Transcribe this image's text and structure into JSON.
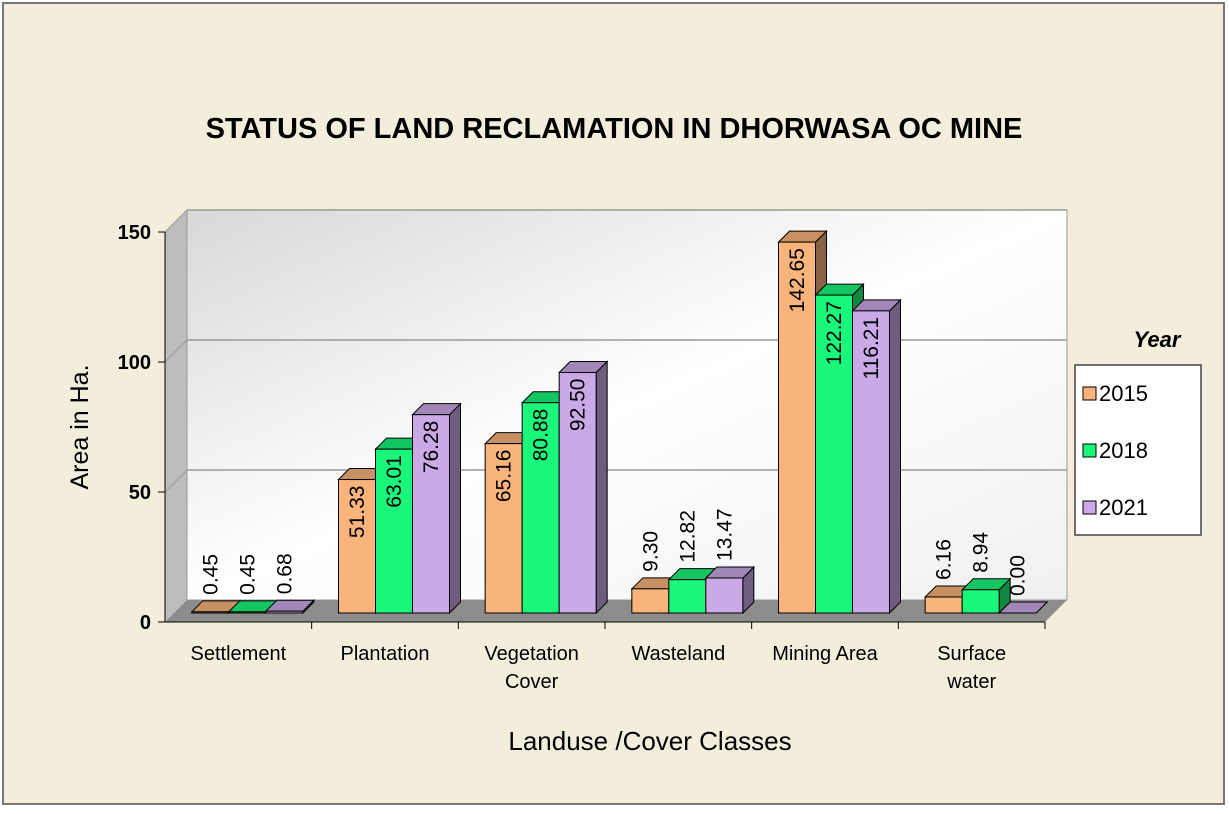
{
  "chart_data": {
    "type": "bar3d",
    "title": "STATUS OF LAND RECLAMATION IN DHORWASA OC MINE",
    "categories": [
      "Settlement",
      "Plantation",
      "Vegetation Cover",
      "Wasteland",
      "Mining Area",
      "Surface water"
    ],
    "series": [
      {
        "name": "2015",
        "color": "#f9b47c",
        "values": [
          0.45,
          51.33,
          65.16,
          9.3,
          142.65,
          6.16
        ],
        "value_labels": [
          "0.45",
          "51.33",
          "65.16",
          "9.30",
          "142.65",
          "6.16"
        ]
      },
      {
        "name": "2018",
        "color": "#19f87a",
        "values": [
          0.45,
          63.01,
          80.88,
          12.82,
          122.27,
          8.94
        ],
        "value_labels": [
          "0.45",
          "63.01",
          "80.88",
          "12.82",
          "122.27",
          "8.94"
        ]
      },
      {
        "name": "2021",
        "color": "#c9a9e6",
        "values": [
          0.68,
          76.28,
          92.5,
          13.47,
          116.21,
          0
        ],
        "value_labels": [
          "0.68",
          "76.28",
          "92.50",
          "13.47",
          "116.21",
          "0.00"
        ]
      }
    ],
    "y_axis_label": "Area in Ha.",
    "x_axis_label": "Landuse /Cover Classes",
    "legend_title": "Year",
    "legend": "right",
    "ylim": [
      0,
      150
    ],
    "yticks": [
      0,
      50,
      100,
      150
    ],
    "grid": true
  }
}
